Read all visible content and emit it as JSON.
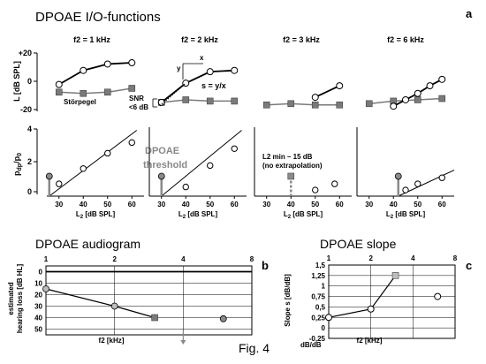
{
  "title": "DPOAE I/O-functions",
  "panel_a_letter": "a",
  "panel_b_letter": "b",
  "panel_c_letter": "c",
  "fig_caption": "Fig. 4",
  "io": {
    "top_ylabel": "L [dB SPL]",
    "top_yticks": [
      "+20",
      "0",
      "-20"
    ],
    "bottom_ylabel_main": "p",
    "bottom_ylabel_sub1": "dp",
    "bottom_ylabel_slash": "/p",
    "bottom_ylabel_sub2": "0",
    "bottom_yticks": [
      "4",
      "2",
      "0"
    ],
    "xticks": [
      "30",
      "40",
      "50",
      "60"
    ],
    "xlabel_prefix": "L",
    "xlabel_sub": "2",
    "xlabel_suffix": " [dB SPL]",
    "panel_titles": [
      "f2 = 1 kHz",
      "f2 = 2 kHz",
      "f2 = 3 kHz",
      "f2 = 6 kHz"
    ],
    "annotations": {
      "stoerpegel": "Störpegel",
      "snr_line1": "SNR",
      "snr_line2": "<6 dB",
      "x": "x",
      "y": "y",
      "s_formula": "s = y/x",
      "dpoae": "DPOAE",
      "threshold": "threshold",
      "lmin_line1": "L2 min – 15 dB",
      "lmin_line2": "(no extrapolation)"
    }
  },
  "audiogram": {
    "title": "DPOAE audiogram",
    "ylabel1": "estimated",
    "ylabel2": "hearing loss [dB HL]",
    "xtop_ticks": [
      "1",
      "2",
      "4",
      "8"
    ],
    "yticks": [
      "0",
      "10",
      "20",
      "30",
      "40",
      "50"
    ],
    "xlabel": "f2 [kHz]"
  },
  "slope": {
    "title": "DPOAE slope",
    "ylabel": "Slope s [dB/dB]",
    "yticks": [
      "1,5",
      "1,25",
      "1",
      "0,75",
      "0,5",
      "0,25",
      "0",
      "-0,25"
    ],
    "unit_label": "dB/dB",
    "xtop_ticks": [
      "1",
      "2",
      "4",
      "8"
    ],
    "xlabel": "f2 [kHz]"
  },
  "colors": {
    "ink": "#000000",
    "noise": "#7a7a7a",
    "threshold_text": "#888888",
    "square_fill": "#bdbdbd",
    "threshold_point": "#8a8a8a"
  },
  "chart_data": [
    {
      "type": "line",
      "name": "io-top",
      "xlim": [
        25,
        65
      ],
      "ylim": [
        -22,
        25
      ],
      "panels": [
        {
          "dp": [
            [
              30,
              -1
            ],
            [
              40,
              10
            ],
            [
              50,
              15
            ],
            [
              60,
              16
            ]
          ],
          "noise": [
            [
              30,
              -7
            ],
            [
              40,
              -8
            ],
            [
              50,
              -7
            ],
            [
              60,
              -4
            ]
          ]
        },
        {
          "dp": [
            [
              30,
              -15
            ],
            [
              40,
              0
            ],
            [
              50,
              9
            ],
            [
              60,
              10
            ]
          ],
          "noise": [
            [
              30,
              -15
            ],
            [
              40,
              -13
            ],
            [
              50,
              -14
            ],
            [
              60,
              -14
            ]
          ]
        },
        {
          "dp": [
            [
              50,
              -11
            ],
            [
              60,
              -2
            ]
          ],
          "noise": [
            [
              30,
              -17
            ],
            [
              40,
              -16
            ],
            [
              50,
              -17
            ],
            [
              60,
              -17
            ]
          ]
        },
        {
          "dp": [
            [
              40,
              -18
            ],
            [
              45,
              -13
            ],
            [
              50,
              -8
            ],
            [
              55,
              -2
            ],
            [
              60,
              3
            ]
          ],
          "noise": [
            [
              30,
              -16
            ],
            [
              40,
              -14
            ],
            [
              50,
              -13
            ],
            [
              60,
              -12
            ]
          ]
        }
      ]
    },
    {
      "type": "scatter",
      "name": "io-bottom",
      "xlim": [
        25,
        65
      ],
      "ylim": [
        0,
        4.5
      ],
      "panels": [
        {
          "points": [
            [
              30,
              0.8
            ],
            [
              40,
              1.8
            ],
            [
              50,
              2.8
            ],
            [
              60,
              3.5
            ]
          ],
          "threshold": [
            26,
            1.3
          ],
          "fit": [
            [
              26,
              0
            ],
            [
              62,
              4.3
            ]
          ]
        },
        {
          "points": [
            [
              40,
              0.6
            ],
            [
              50,
              2.0
            ],
            [
              60,
              3.1
            ]
          ],
          "threshold": [
            30,
            1.3
          ],
          "fit": [
            [
              30,
              0
            ],
            [
              63,
              4.3
            ]
          ]
        },
        {
          "points": [
            [
              50,
              0.4
            ],
            [
              58,
              0.8
            ]
          ],
          "threshold": [
            40,
            1.3
          ]
        },
        {
          "points": [
            [
              45,
              0.4
            ],
            [
              50,
              0.8
            ],
            [
              60,
              1.2
            ]
          ],
          "threshold": [
            42,
            1.3
          ],
          "fit": [
            [
              42,
              0
            ],
            [
              65,
              1.7
            ]
          ]
        }
      ]
    },
    {
      "type": "line",
      "name": "audiogram",
      "x_scale": "log2",
      "xlim_kHz": [
        1,
        8
      ],
      "ylim": [
        -5,
        55
      ],
      "points": [
        {
          "f": 1,
          "hl": 15
        },
        {
          "f": 2,
          "hl": 30
        },
        {
          "f": 3,
          "hl": 40,
          "marker": "square"
        }
      ],
      "extra_points": [
        {
          "f": 6,
          "hl": 41
        }
      ],
      "arrow_f": 4
    },
    {
      "type": "line",
      "name": "slope",
      "x_scale": "log2",
      "xlim_kHz": [
        1,
        8
      ],
      "ylim": [
        -0.25,
        1.5
      ],
      "points": [
        {
          "f": 1,
          "s": 0.25
        },
        {
          "f": 2,
          "s": 0.45
        },
        {
          "f": 3,
          "s": 1.25,
          "marker": "square"
        }
      ],
      "extra_points": [
        {
          "f": 6,
          "s": 0.75
        }
      ]
    }
  ]
}
